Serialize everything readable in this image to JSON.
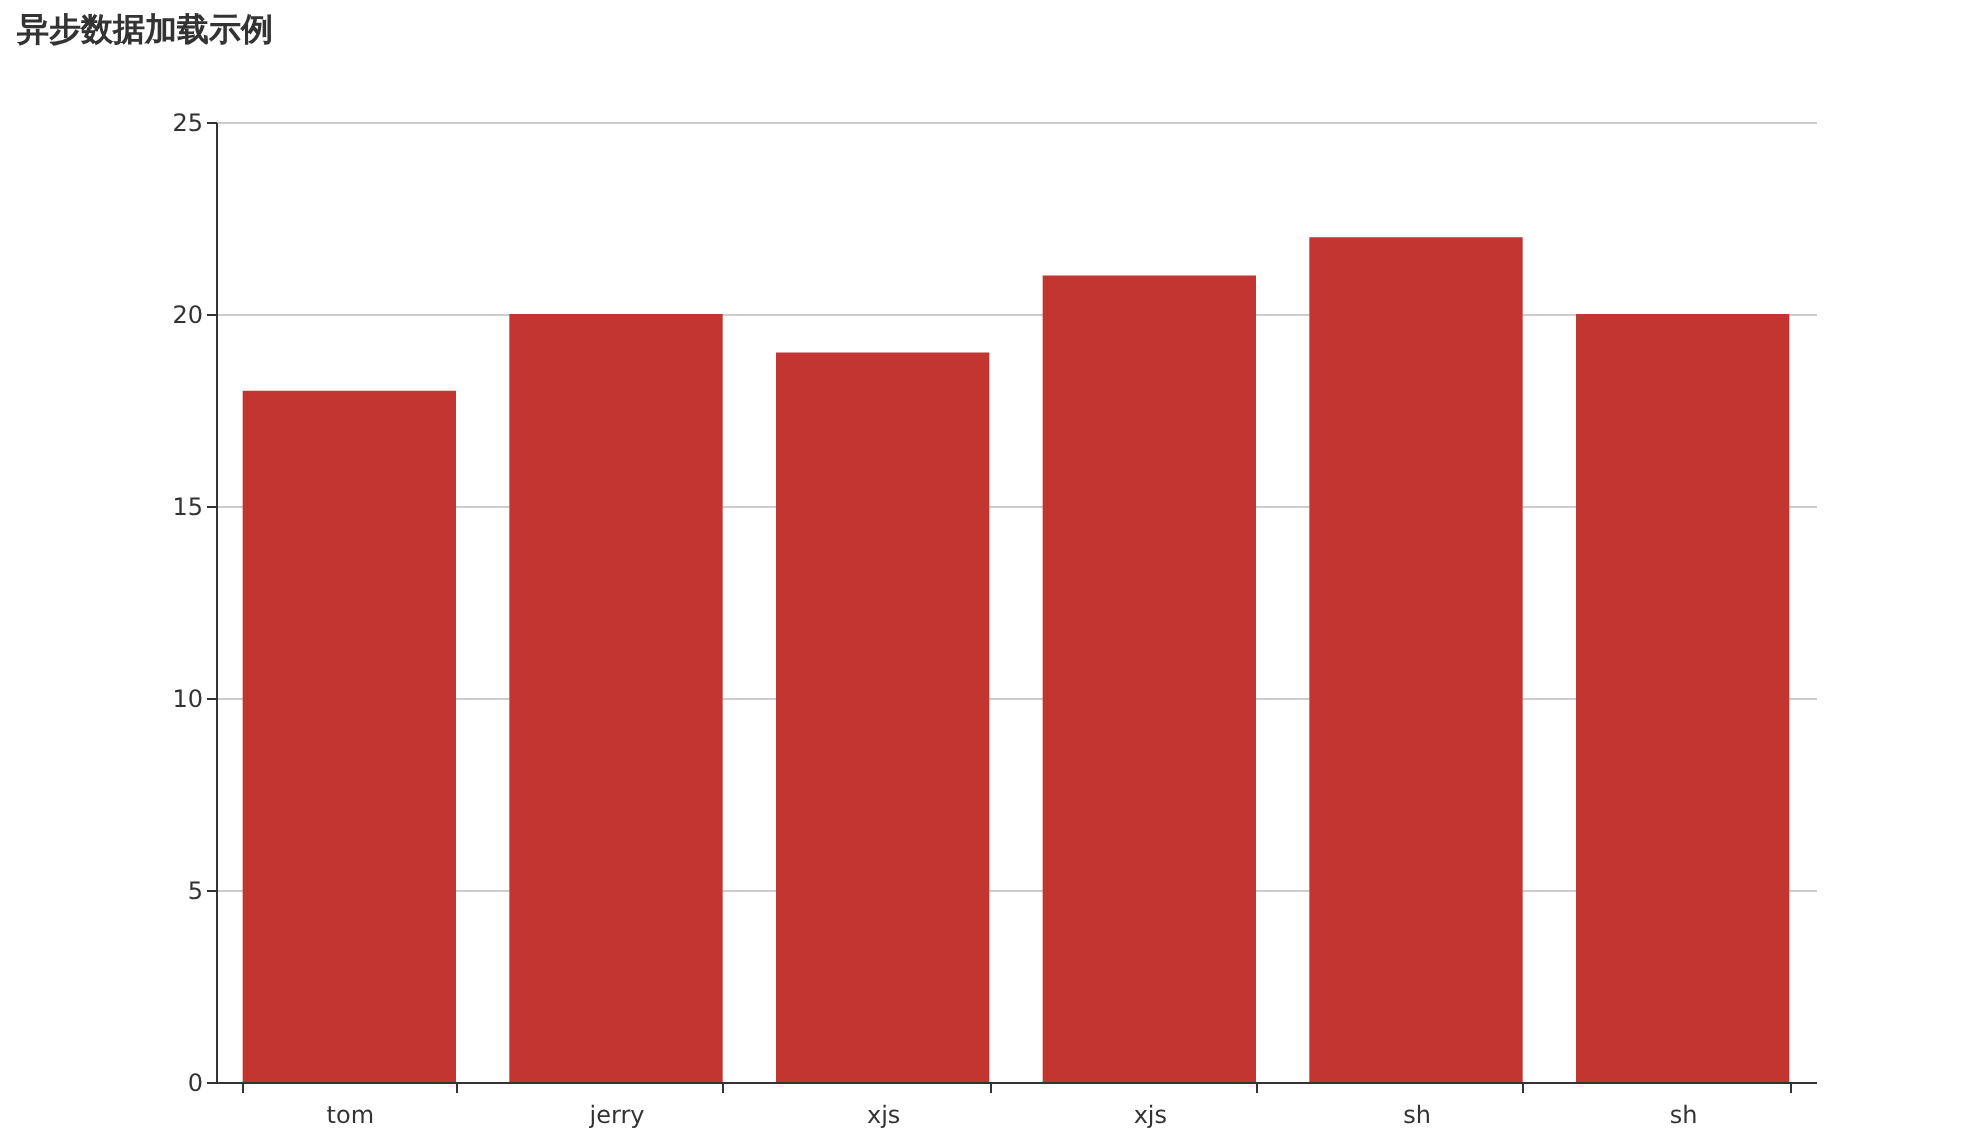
{
  "chart_data": {
    "type": "bar",
    "title": "异步数据加载示例",
    "categories": [
      "tom",
      "jerry",
      "xjs",
      "xjs",
      "sh",
      "sh"
    ],
    "values": [
      18,
      20,
      19,
      21,
      22,
      20
    ],
    "color": "#c23531",
    "ylim": [
      0,
      25
    ],
    "yticks": [
      0,
      5,
      10,
      15,
      20,
      25
    ],
    "grid": "y"
  }
}
